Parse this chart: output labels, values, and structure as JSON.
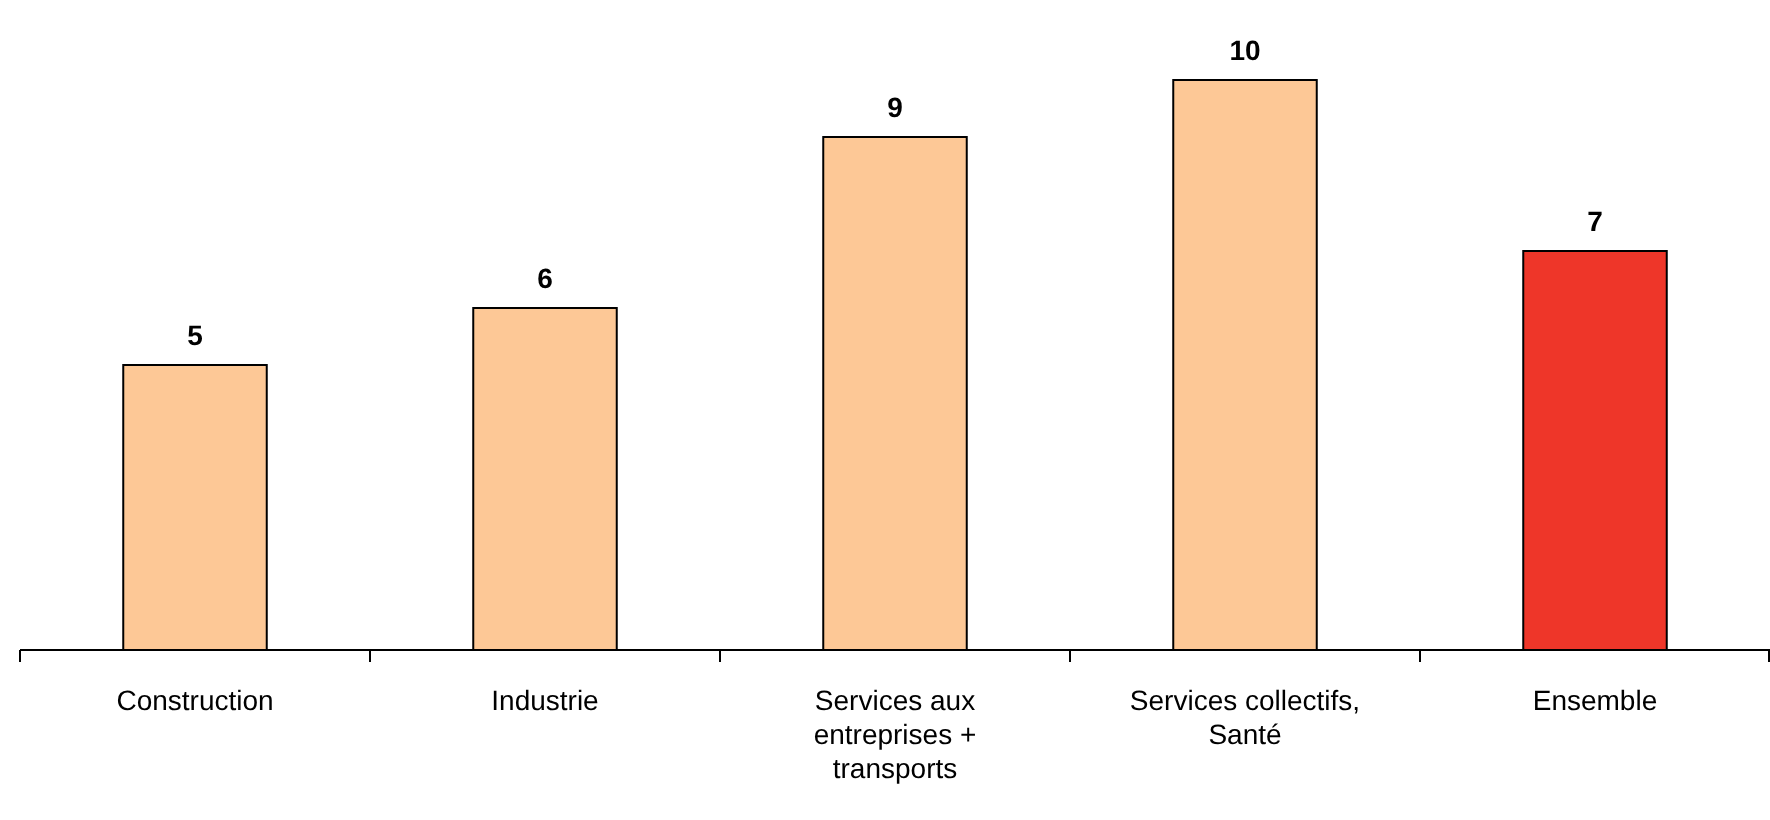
{
  "chart_data": {
    "type": "bar",
    "categories": [
      "Construction",
      "Industrie",
      "Services aux entreprises + transports",
      "Services collectifs, Santé",
      "Ensemble"
    ],
    "values": [
      5,
      6,
      9,
      10,
      7
    ],
    "colors": [
      "#fdc896",
      "#fdc896",
      "#fdc896",
      "#fdc896",
      "#ee3629"
    ],
    "data_labels": true,
    "grid": false
  }
}
